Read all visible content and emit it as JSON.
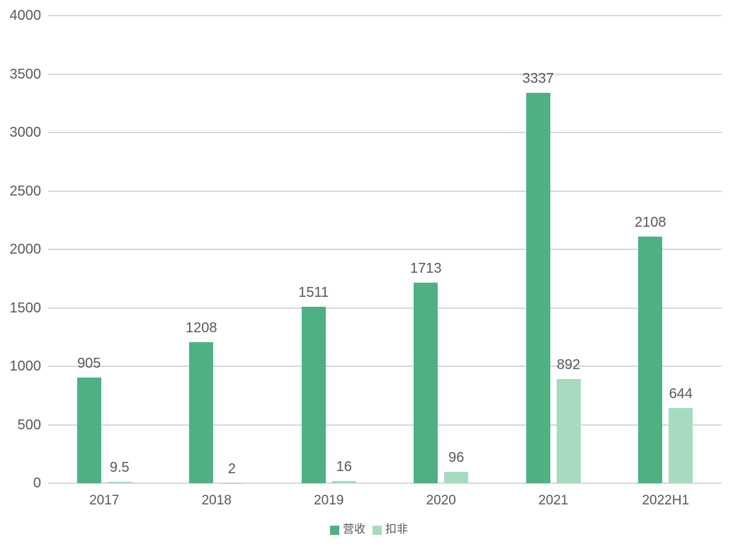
{
  "chart_data": {
    "type": "bar",
    "title": "",
    "xlabel": "",
    "ylabel": "",
    "categories": [
      "2017",
      "2018",
      "2019",
      "2020",
      "2021",
      "2022H1"
    ],
    "series": [
      {
        "name": "营收",
        "color": "#4FB183",
        "values": [
          905,
          1208,
          1511,
          1713,
          3337,
          2108
        ]
      },
      {
        "name": "扣非",
        "color": "#A7DBBF",
        "values": [
          9.5,
          2,
          16,
          96,
          892,
          644
        ]
      }
    ],
    "ylim": [
      0,
      4000
    ],
    "ytick_step": 500,
    "ytick_labels": [
      "0",
      "500",
      "1000",
      "1500",
      "2000",
      "2500",
      "3000",
      "3500",
      "4000"
    ],
    "grid": true,
    "legend_position": "bottom",
    "bar_value_labels": [
      "905",
      "9.5",
      "1208",
      "2",
      "1511",
      "16",
      "1713",
      "96",
      "3337",
      "892",
      "2108",
      "644"
    ],
    "colors": {
      "background": "#ffffff",
      "text": "#595959",
      "gridline": "#d9d9d9",
      "axis_line": "#d9d9d9"
    }
  }
}
